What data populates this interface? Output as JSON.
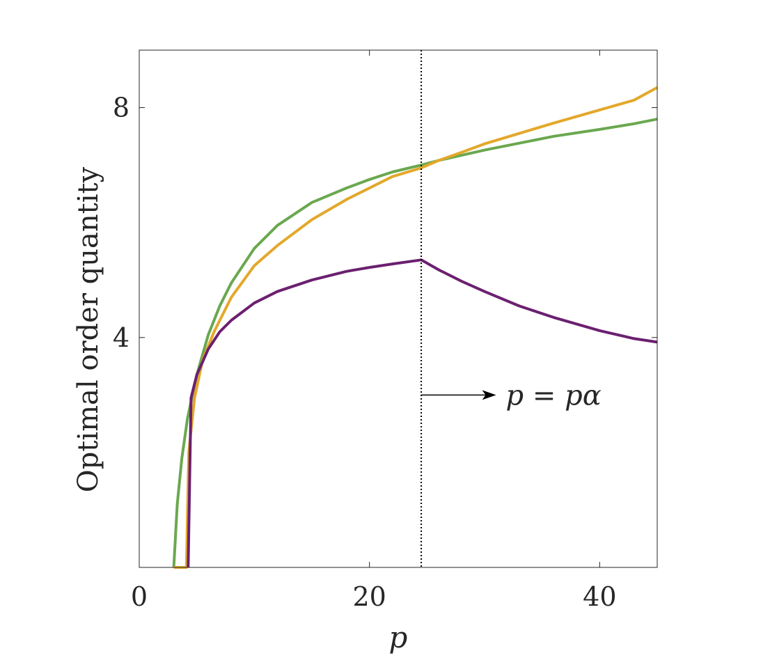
{
  "chart_data": {
    "type": "line",
    "xlabel": "p",
    "ylabel": "Optimal order quantity",
    "xlim": [
      0,
      45
    ],
    "ylim": [
      0,
      9
    ],
    "xticks": [
      0,
      20,
      40
    ],
    "yticks": [
      4,
      8
    ],
    "grid": false,
    "legend": "none",
    "vline": {
      "x": 24.5,
      "style": "dotted"
    },
    "annotation": {
      "text": "p = pα",
      "arrow_from_x": 24.5,
      "arrow_to_x": 31,
      "y": 3.0
    },
    "series": [
      {
        "color": "#6aa84f",
        "x": [
          3.0,
          3.3,
          3.7,
          4.2,
          5,
          6,
          7,
          8,
          10,
          12,
          15,
          18,
          20,
          22,
          24.5,
          26,
          28,
          30,
          33,
          36,
          40,
          43,
          45
        ],
        "y": [
          0.0,
          1.1,
          1.9,
          2.6,
          3.35,
          4.05,
          4.55,
          4.95,
          5.55,
          5.95,
          6.35,
          6.6,
          6.75,
          6.88,
          7.0,
          7.08,
          7.17,
          7.26,
          7.38,
          7.5,
          7.62,
          7.72,
          7.8
        ]
      },
      {
        "color": "#e3a82b",
        "x": [
          3.0,
          4.1,
          4.3,
          4.8,
          5.5,
          6.5,
          8,
          10,
          12,
          15,
          18,
          20,
          22,
          24.5,
          26,
          28,
          30,
          33,
          36,
          40,
          43,
          45
        ],
        "y": [
          0.0,
          0.0,
          2.0,
          2.95,
          3.6,
          4.1,
          4.7,
          5.25,
          5.6,
          6.05,
          6.4,
          6.6,
          6.8,
          6.95,
          7.08,
          7.22,
          7.37,
          7.55,
          7.73,
          7.96,
          8.13,
          8.35
        ]
      },
      {
        "color": "#6b2070",
        "x": [
          4.25,
          4.5,
          5,
          6,
          7,
          8,
          10,
          12,
          15,
          18,
          20,
          22,
          24.5,
          26,
          28,
          30,
          33,
          36,
          40,
          43,
          45
        ],
        "y": [
          0.0,
          2.95,
          3.35,
          3.8,
          4.1,
          4.3,
          4.6,
          4.8,
          5.0,
          5.15,
          5.22,
          5.28,
          5.35,
          5.18,
          4.98,
          4.8,
          4.55,
          4.35,
          4.12,
          3.98,
          3.92
        ]
      }
    ]
  }
}
